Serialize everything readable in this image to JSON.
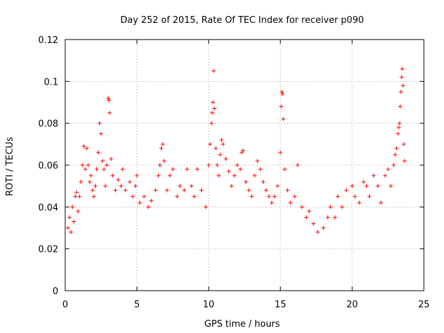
{
  "chart_data": {
    "type": "scatter",
    "title": "Day 252 of 2015, Rate Of TEC Index for receiver p090",
    "xlabel": "GPS time / hours",
    "ylabel": "ROTI / TECUs",
    "xlim": [
      0,
      25
    ],
    "ylim": [
      0,
      0.12
    ],
    "x_ticks": [
      "0",
      "5",
      "10",
      "15",
      "20",
      "25"
    ],
    "x_tick_values": [
      0,
      5,
      10,
      15,
      20,
      25
    ],
    "y_ticks": [
      "0",
      "0.02",
      "0.04",
      "0.06",
      "0.08",
      "0.1",
      "0.12"
    ],
    "y_tick_values": [
      0,
      0.02,
      0.04,
      0.06,
      0.08,
      0.1,
      0.12
    ],
    "grid": true,
    "marker": "+",
    "color": "#ff0000",
    "series": [
      {
        "name": "ROTI",
        "points": [
          [
            0.2,
            0.03
          ],
          [
            0.3,
            0.035
          ],
          [
            0.4,
            0.028
          ],
          [
            0.5,
            0.04
          ],
          [
            0.6,
            0.033
          ],
          [
            0.7,
            0.045
          ],
          [
            0.8,
            0.047
          ],
          [
            0.9,
            0.038
          ],
          [
            1.0,
            0.045
          ],
          [
            1.1,
            0.052
          ],
          [
            1.2,
            0.06
          ],
          [
            1.3,
            0.069
          ],
          [
            1.4,
            0.058
          ],
          [
            1.5,
            0.068
          ],
          [
            1.6,
            0.06
          ],
          [
            1.7,
            0.052
          ],
          [
            1.8,
            0.055
          ],
          [
            1.9,
            0.048
          ],
          [
            2.0,
            0.045
          ],
          [
            2.1,
            0.05
          ],
          [
            2.2,
            0.058
          ],
          [
            2.3,
            0.066
          ],
          [
            2.4,
            0.08
          ],
          [
            2.5,
            0.075
          ],
          [
            2.6,
            0.062
          ],
          [
            2.7,
            0.058
          ],
          [
            2.8,
            0.05
          ],
          [
            2.9,
            0.06
          ],
          [
            3.0,
            0.092
          ],
          [
            3.05,
            0.091
          ],
          [
            3.1,
            0.085
          ],
          [
            3.2,
            0.063
          ],
          [
            3.3,
            0.055
          ],
          [
            3.5,
            0.048
          ],
          [
            3.7,
            0.053
          ],
          [
            3.9,
            0.05
          ],
          [
            4.0,
            0.058
          ],
          [
            4.2,
            0.048
          ],
          [
            4.5,
            0.052
          ],
          [
            4.7,
            0.045
          ],
          [
            4.9,
            0.05
          ],
          [
            5.0,
            0.055
          ],
          [
            5.2,
            0.042
          ],
          [
            5.5,
            0.045
          ],
          [
            5.8,
            0.04
          ],
          [
            6.0,
            0.043
          ],
          [
            6.3,
            0.048
          ],
          [
            6.5,
            0.055
          ],
          [
            6.6,
            0.06
          ],
          [
            6.7,
            0.068
          ],
          [
            6.8,
            0.07
          ],
          [
            6.9,
            0.062
          ],
          [
            7.1,
            0.048
          ],
          [
            7.3,
            0.055
          ],
          [
            7.5,
            0.058
          ],
          [
            7.8,
            0.045
          ],
          [
            8.0,
            0.05
          ],
          [
            8.3,
            0.048
          ],
          [
            8.5,
            0.058
          ],
          [
            8.8,
            0.05
          ],
          [
            9.0,
            0.045
          ],
          [
            9.2,
            0.058
          ],
          [
            9.5,
            0.048
          ],
          [
            9.8,
            0.04
          ],
          [
            10.0,
            0.06
          ],
          [
            10.1,
            0.07
          ],
          [
            10.2,
            0.08
          ],
          [
            10.25,
            0.085
          ],
          [
            10.3,
            0.09
          ],
          [
            10.35,
            0.105
          ],
          [
            10.4,
            0.087
          ],
          [
            10.5,
            0.068
          ],
          [
            10.6,
            0.06
          ],
          [
            10.7,
            0.055
          ],
          [
            10.8,
            0.065
          ],
          [
            10.9,
            0.072
          ],
          [
            11.0,
            0.07
          ],
          [
            11.2,
            0.063
          ],
          [
            11.4,
            0.057
          ],
          [
            11.6,
            0.05
          ],
          [
            11.8,
            0.055
          ],
          [
            12.0,
            0.06
          ],
          [
            12.2,
            0.058
          ],
          [
            12.3,
            0.066
          ],
          [
            12.4,
            0.067
          ],
          [
            12.6,
            0.052
          ],
          [
            12.8,
            0.048
          ],
          [
            13.0,
            0.045
          ],
          [
            13.2,
            0.055
          ],
          [
            13.4,
            0.062
          ],
          [
            13.6,
            0.058
          ],
          [
            13.8,
            0.052
          ],
          [
            14.0,
            0.048
          ],
          [
            14.2,
            0.045
          ],
          [
            14.4,
            0.042
          ],
          [
            14.6,
            0.045
          ],
          [
            14.8,
            0.05
          ],
          [
            15.0,
            0.066
          ],
          [
            15.05,
            0.088
          ],
          [
            15.1,
            0.095
          ],
          [
            15.15,
            0.094
          ],
          [
            15.2,
            0.082
          ],
          [
            15.3,
            0.058
          ],
          [
            15.5,
            0.048
          ],
          [
            15.7,
            0.042
          ],
          [
            16.0,
            0.045
          ],
          [
            16.2,
            0.06
          ],
          [
            16.5,
            0.04
          ],
          [
            16.8,
            0.035
          ],
          [
            17.0,
            0.038
          ],
          [
            17.3,
            0.032
          ],
          [
            17.6,
            0.028
          ],
          [
            18.0,
            0.03
          ],
          [
            18.3,
            0.035
          ],
          [
            18.5,
            0.04
          ],
          [
            18.8,
            0.035
          ],
          [
            19.0,
            0.045
          ],
          [
            19.3,
            0.04
          ],
          [
            19.6,
            0.048
          ],
          [
            20.0,
            0.05
          ],
          [
            20.2,
            0.045
          ],
          [
            20.5,
            0.042
          ],
          [
            20.8,
            0.052
          ],
          [
            21.0,
            0.05
          ],
          [
            21.2,
            0.045
          ],
          [
            21.5,
            0.055
          ],
          [
            21.8,
            0.05
          ],
          [
            22.0,
            0.042
          ],
          [
            22.3,
            0.055
          ],
          [
            22.5,
            0.058
          ],
          [
            22.7,
            0.05
          ],
          [
            22.9,
            0.06
          ],
          [
            23.0,
            0.065
          ],
          [
            23.1,
            0.068
          ],
          [
            23.2,
            0.075
          ],
          [
            23.25,
            0.078
          ],
          [
            23.3,
            0.08
          ],
          [
            23.35,
            0.088
          ],
          [
            23.4,
            0.095
          ],
          [
            23.45,
            0.102
          ],
          [
            23.5,
            0.106
          ],
          [
            23.55,
            0.098
          ],
          [
            23.6,
            0.07
          ],
          [
            23.65,
            0.062
          ]
        ]
      }
    ]
  }
}
